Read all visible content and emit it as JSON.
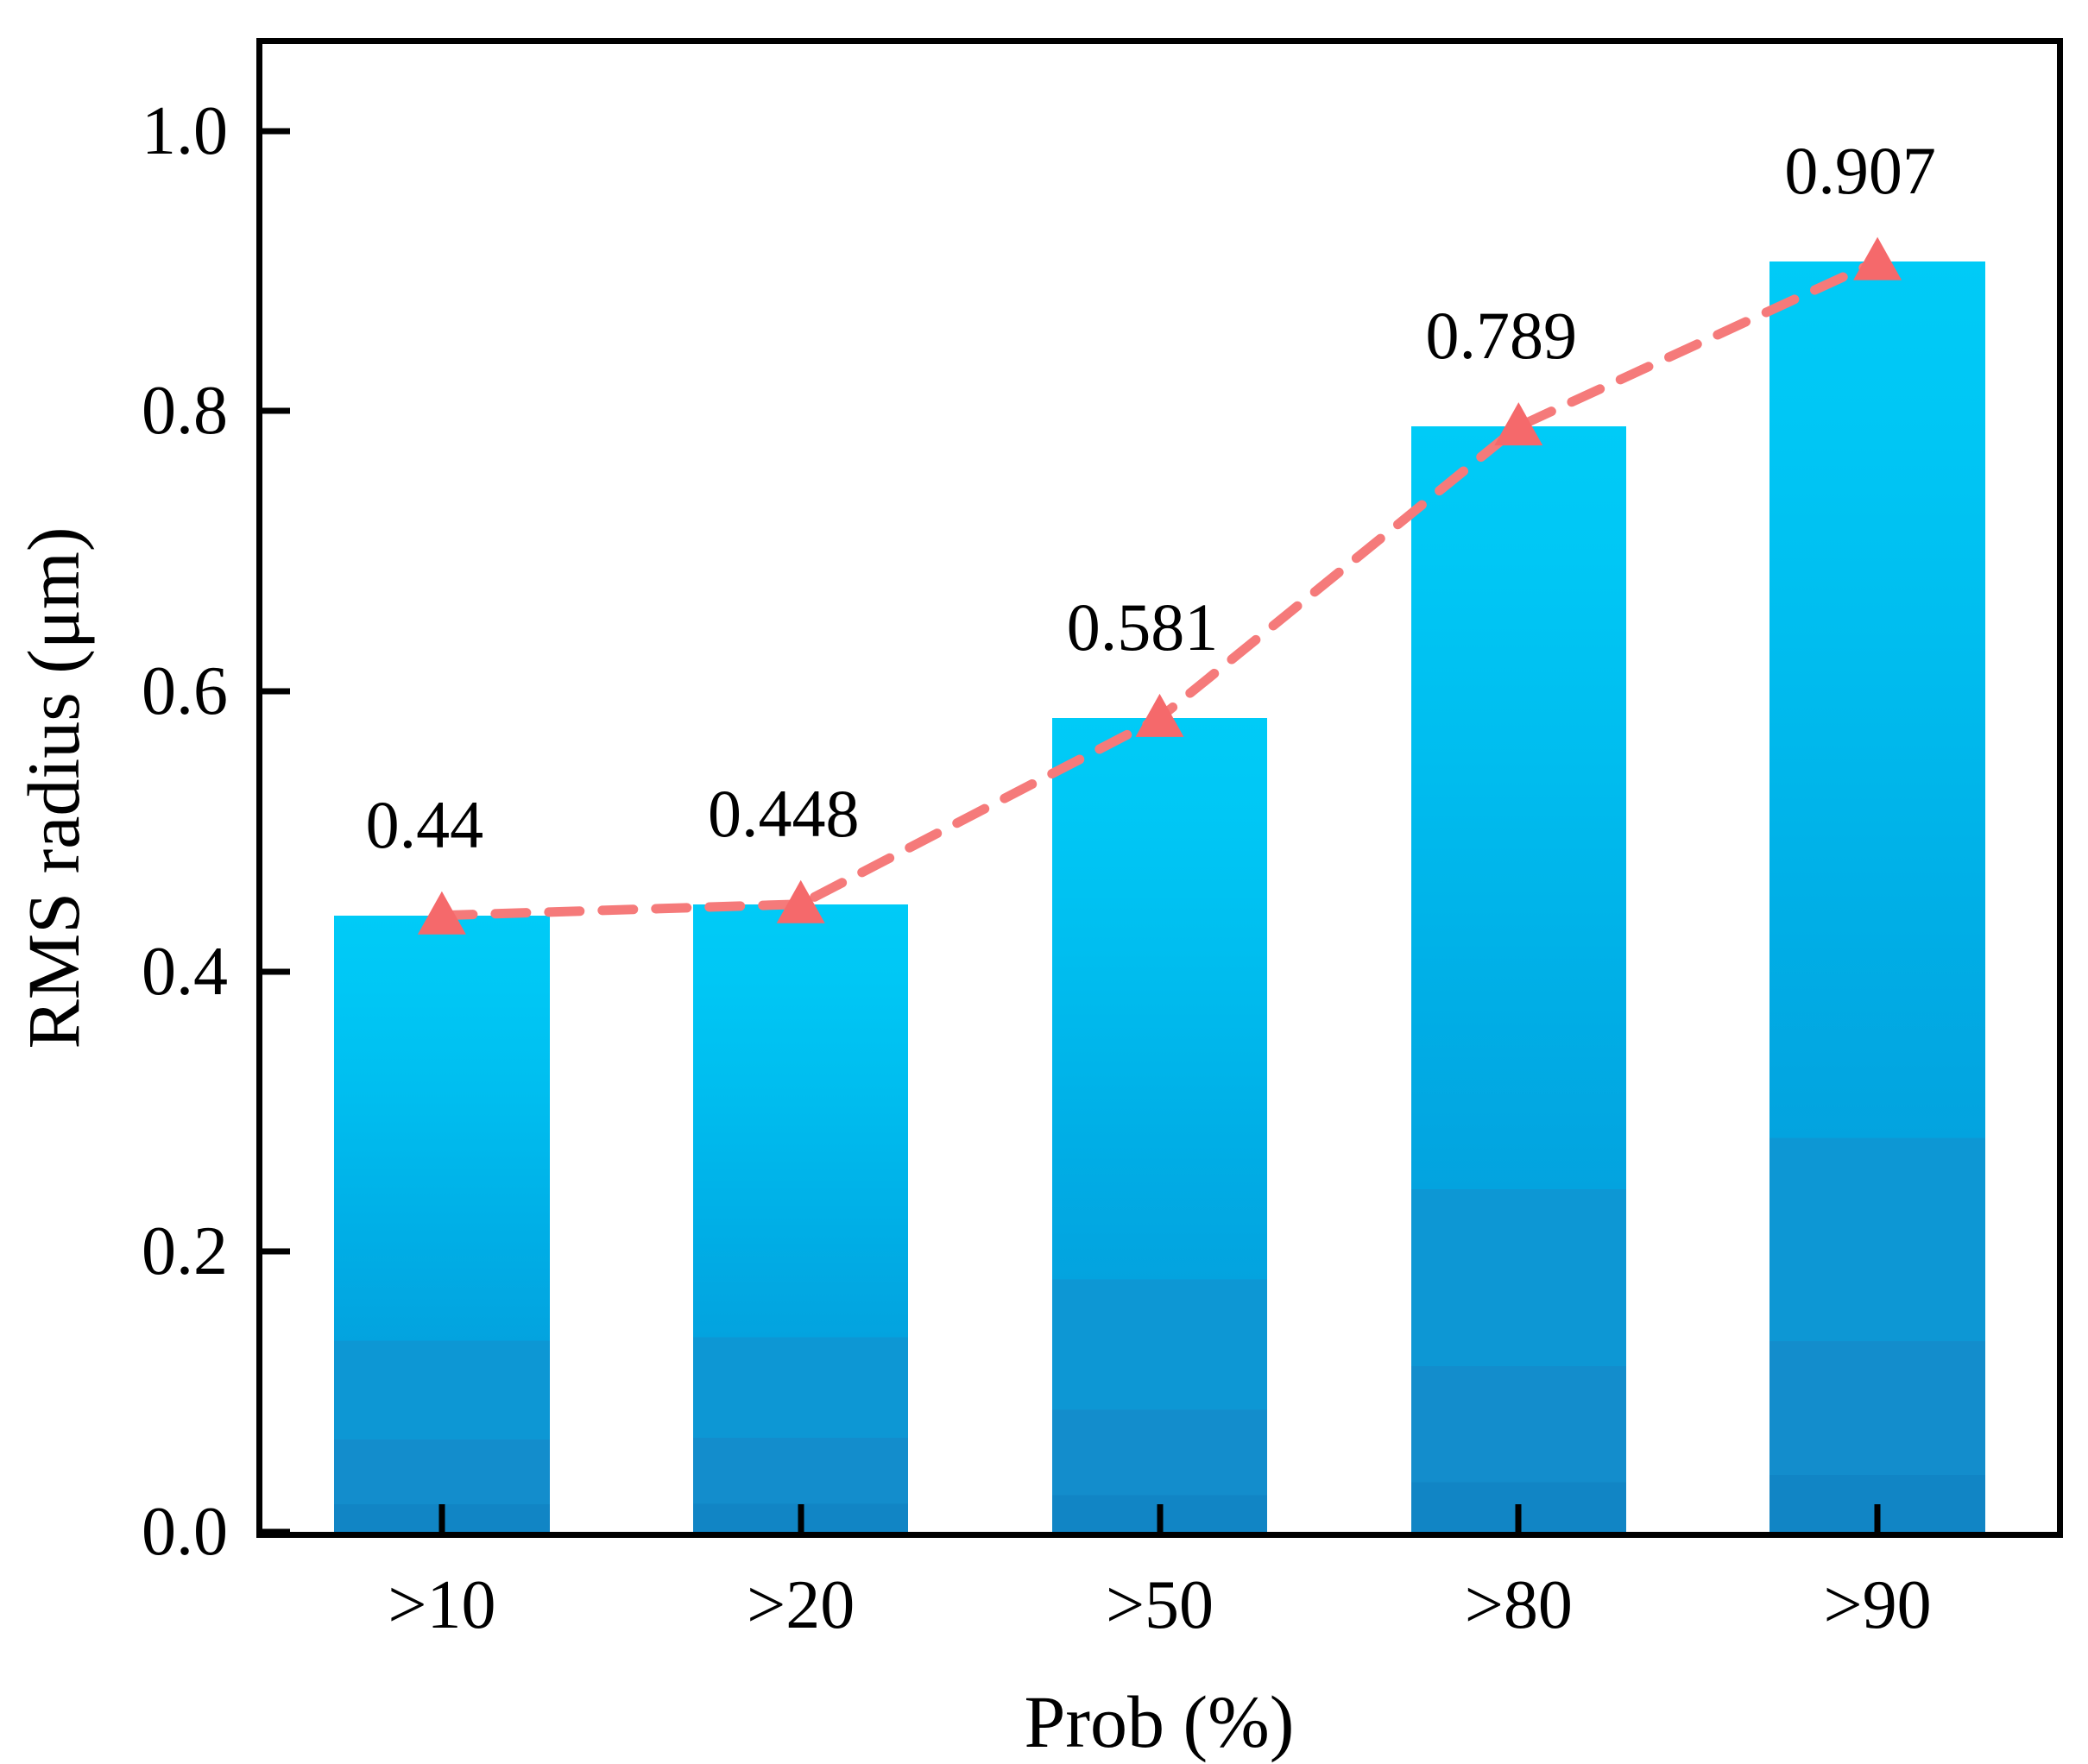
{
  "chart_data": {
    "type": "bar",
    "title": "",
    "xlabel": "Prob (%)",
    "ylabel": "RMS radius (μm)",
    "categories": [
      ">10",
      ">20",
      ">50",
      ">80",
      ">90"
    ],
    "series": [
      {
        "name": "RMS radius bars",
        "type": "bar",
        "values": [
          0.44,
          0.448,
          0.581,
          0.789,
          0.907
        ],
        "data_labels": [
          "0.44",
          "0.448",
          "0.581",
          "0.789",
          "0.907"
        ]
      },
      {
        "name": "RMS radius trend",
        "type": "line",
        "line_style": "dashed",
        "marker": "triangle-up",
        "values": [
          0.44,
          0.448,
          0.581,
          0.789,
          0.907
        ]
      }
    ],
    "ylim": [
      0,
      1.062
    ],
    "yticks": [
      "0.0",
      "0.2",
      "0.4",
      "0.6",
      "0.8",
      "1.0"
    ],
    "xticks_at_bar_centers": true,
    "grid": false,
    "legend": null,
    "colors": {
      "bar_gradient_top": "#00cbf7",
      "bar_gradient_mid": "#00aee6",
      "bar_gradient_bottom": "#1185c5",
      "line": "#f57a7a",
      "marker": "#f5696b",
      "axis": "#000000",
      "text": "#000000",
      "background": "#ffffff"
    }
  }
}
